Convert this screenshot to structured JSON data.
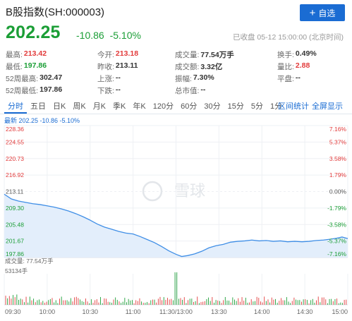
{
  "header": {
    "title": "B股指数(SH:000003)",
    "add_button": "自选",
    "price": "202.25",
    "change_abs": "-10.86",
    "change_pct": "-5.10%",
    "status": "已收盘 05-12 15:00:00 (北京时间)"
  },
  "stats": {
    "rows": [
      [
        {
          "label": "最高:",
          "value": "213.42",
          "color": "red"
        },
        {
          "label": "今开:",
          "value": "213.18",
          "color": "red"
        },
        {
          "label": "成交量:",
          "value": "77.54万手",
          "color": "dark"
        },
        {
          "label": "换手:",
          "value": "0.49%",
          "color": "dark"
        }
      ],
      [
        {
          "label": "最低:",
          "value": "197.86",
          "color": "green"
        },
        {
          "label": "昨收:",
          "value": "213.11",
          "color": "dark"
        },
        {
          "label": "成交额:",
          "value": "3.32亿",
          "color": "dark"
        },
        {
          "label": "量比:",
          "value": "2.88",
          "color": "red"
        }
      ],
      [
        {
          "label": "52周最高:",
          "value": "302.47",
          "color": "dark"
        },
        {
          "label": "上涨:",
          "value": "--",
          "color": "dark"
        },
        {
          "label": "振幅:",
          "value": "7.30%",
          "color": "dark"
        },
        {
          "label": "平盘:",
          "value": "--",
          "color": "dark"
        }
      ],
      [
        {
          "label": "52周最低:",
          "value": "197.86",
          "color": "dark"
        },
        {
          "label": "下跌:",
          "value": "--",
          "color": "dark"
        },
        {
          "label": "总市值:",
          "value": "--",
          "color": "dark"
        },
        {
          "label": "",
          "value": "",
          "color": "dark"
        }
      ]
    ]
  },
  "tabs": {
    "items": [
      "分时",
      "五日",
      "日K",
      "周K",
      "月K",
      "季K",
      "年K",
      "120分",
      "60分",
      "30分",
      "15分",
      "5分",
      "1分"
    ],
    "active": 0,
    "stats_link": "区间统计",
    "fullscreen_link": "全屏显示"
  },
  "legend": "最新 202.25 -10.86 -5.10%",
  "watermark": "雪球",
  "volume_label": "成交量: 77.54万手",
  "volume_scale": "53134手",
  "chart_data": {
    "type": "line",
    "price_axis": [
      "228.36",
      "224.55",
      "220.73",
      "216.92",
      "213.11",
      "209.30",
      "205.48",
      "201.67",
      "197.86"
    ],
    "pct_axis": [
      "7.16%",
      "5.37%",
      "3.58%",
      "1.79%",
      "0.00%",
      "-1.79%",
      "-3.58%",
      "-5.37%",
      "-7.16%"
    ],
    "ylim": [
      197.86,
      228.36
    ],
    "prev_close": 213.11,
    "x_ticks": [
      "09:30",
      "10:00",
      "10:30",
      "11:00",
      "11:30/13:00",
      "13:30",
      "14:00",
      "14:30",
      "15:00"
    ],
    "price_series": [
      {
        "t": 0,
        "v": 212.5
      },
      {
        "t": 5,
        "v": 211.4
      },
      {
        "t": 10,
        "v": 210.9
      },
      {
        "t": 15,
        "v": 210.6
      },
      {
        "t": 20,
        "v": 210.3
      },
      {
        "t": 25,
        "v": 210.1
      },
      {
        "t": 30,
        "v": 209.8
      },
      {
        "t": 35,
        "v": 209.5
      },
      {
        "t": 40,
        "v": 209.1
      },
      {
        "t": 45,
        "v": 208.6
      },
      {
        "t": 50,
        "v": 208.0
      },
      {
        "t": 55,
        "v": 207.3
      },
      {
        "t": 60,
        "v": 206.5
      },
      {
        "t": 65,
        "v": 205.6
      },
      {
        "t": 70,
        "v": 204.9
      },
      {
        "t": 75,
        "v": 204.4
      },
      {
        "t": 80,
        "v": 203.9
      },
      {
        "t": 85,
        "v": 203.5
      },
      {
        "t": 90,
        "v": 203.3
      },
      {
        "t": 95,
        "v": 202.7
      },
      {
        "t": 100,
        "v": 202.0
      },
      {
        "t": 105,
        "v": 201.3
      },
      {
        "t": 110,
        "v": 200.4
      },
      {
        "t": 115,
        "v": 199.4
      },
      {
        "t": 120,
        "v": 198.6
      },
      {
        "t": 124,
        "v": 198.1
      },
      {
        "t": 128,
        "v": 198.3
      },
      {
        "t": 133,
        "v": 198.7
      },
      {
        "t": 138,
        "v": 199.3
      },
      {
        "t": 143,
        "v": 200.1
      },
      {
        "t": 148,
        "v": 200.6
      },
      {
        "t": 153,
        "v": 200.9
      },
      {
        "t": 158,
        "v": 201.4
      },
      {
        "t": 163,
        "v": 201.6
      },
      {
        "t": 168,
        "v": 201.7
      },
      {
        "t": 173,
        "v": 201.9
      },
      {
        "t": 178,
        "v": 201.7
      },
      {
        "t": 183,
        "v": 201.8
      },
      {
        "t": 188,
        "v": 201.6
      },
      {
        "t": 193,
        "v": 201.7
      },
      {
        "t": 198,
        "v": 201.5
      },
      {
        "t": 203,
        "v": 201.6
      },
      {
        "t": 208,
        "v": 201.5
      },
      {
        "t": 213,
        "v": 201.6
      },
      {
        "t": 218,
        "v": 201.8
      },
      {
        "t": 223,
        "v": 201.9
      },
      {
        "t": 228,
        "v": 202.1
      },
      {
        "t": 232,
        "v": 202.3
      },
      {
        "t": 236,
        "v": 202.6
      },
      {
        "t": 240,
        "v": 202.25
      }
    ],
    "volume_max": 53134,
    "volume_spike_t": 120
  }
}
